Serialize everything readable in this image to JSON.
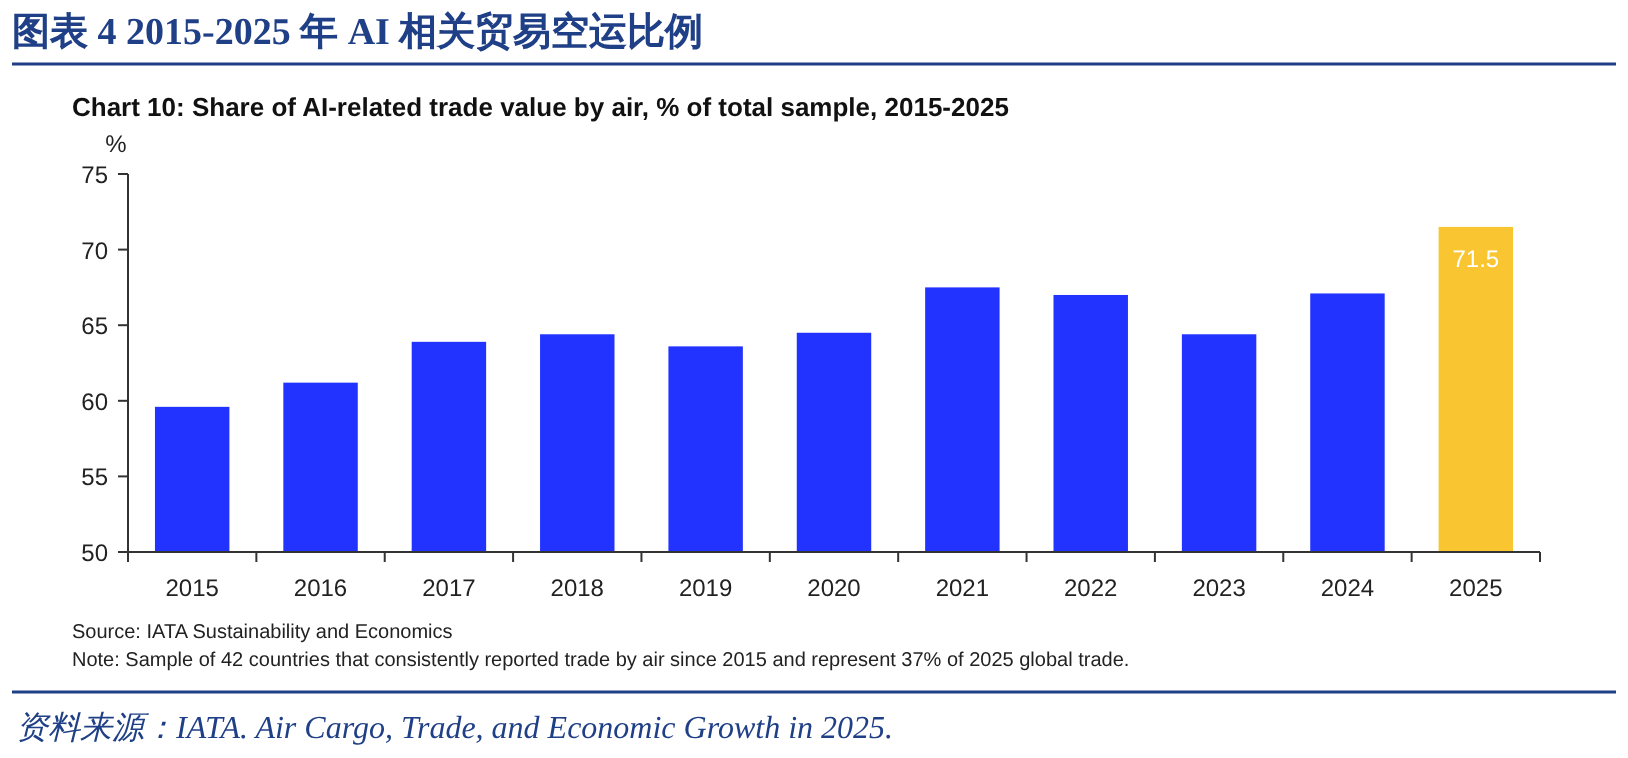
{
  "chart_data": {
    "type": "bar",
    "title": "图表 4   2015-2025 年 AI 相关贸易空运比例",
    "subtitle": "Chart 10: Share of AI-related trade value by air, % of total sample, 2015-2025",
    "ylabel": "%",
    "categories": [
      "2015",
      "2016",
      "2017",
      "2018",
      "2019",
      "2020",
      "2021",
      "2022",
      "2023",
      "2024",
      "2025"
    ],
    "values": [
      59.6,
      61.2,
      63.9,
      64.4,
      63.6,
      64.5,
      67.5,
      67.0,
      64.4,
      67.1,
      71.5
    ],
    "colors": [
      "#2233ff",
      "#2233ff",
      "#2233ff",
      "#2233ff",
      "#2233ff",
      "#2233ff",
      "#2233ff",
      "#2233ff",
      "#2233ff",
      "#2233ff",
      "#f9c631"
    ],
    "value_labels": [
      null,
      null,
      null,
      null,
      null,
      null,
      null,
      null,
      null,
      null,
      "71.5"
    ],
    "ylim": [
      50,
      75
    ],
    "yticks": [
      50,
      55,
      60,
      65,
      70,
      75
    ],
    "grid": false,
    "annotations": [
      "Source: IATA Sustainability and Economics",
      "Note: Sample of 42 countries that consistently reported trade by air since 2015 and represent 37% of 2025 global trade.",
      "资料来源：IATA. Air Cargo, Trade, and Economic Growth in 2025."
    ]
  }
}
